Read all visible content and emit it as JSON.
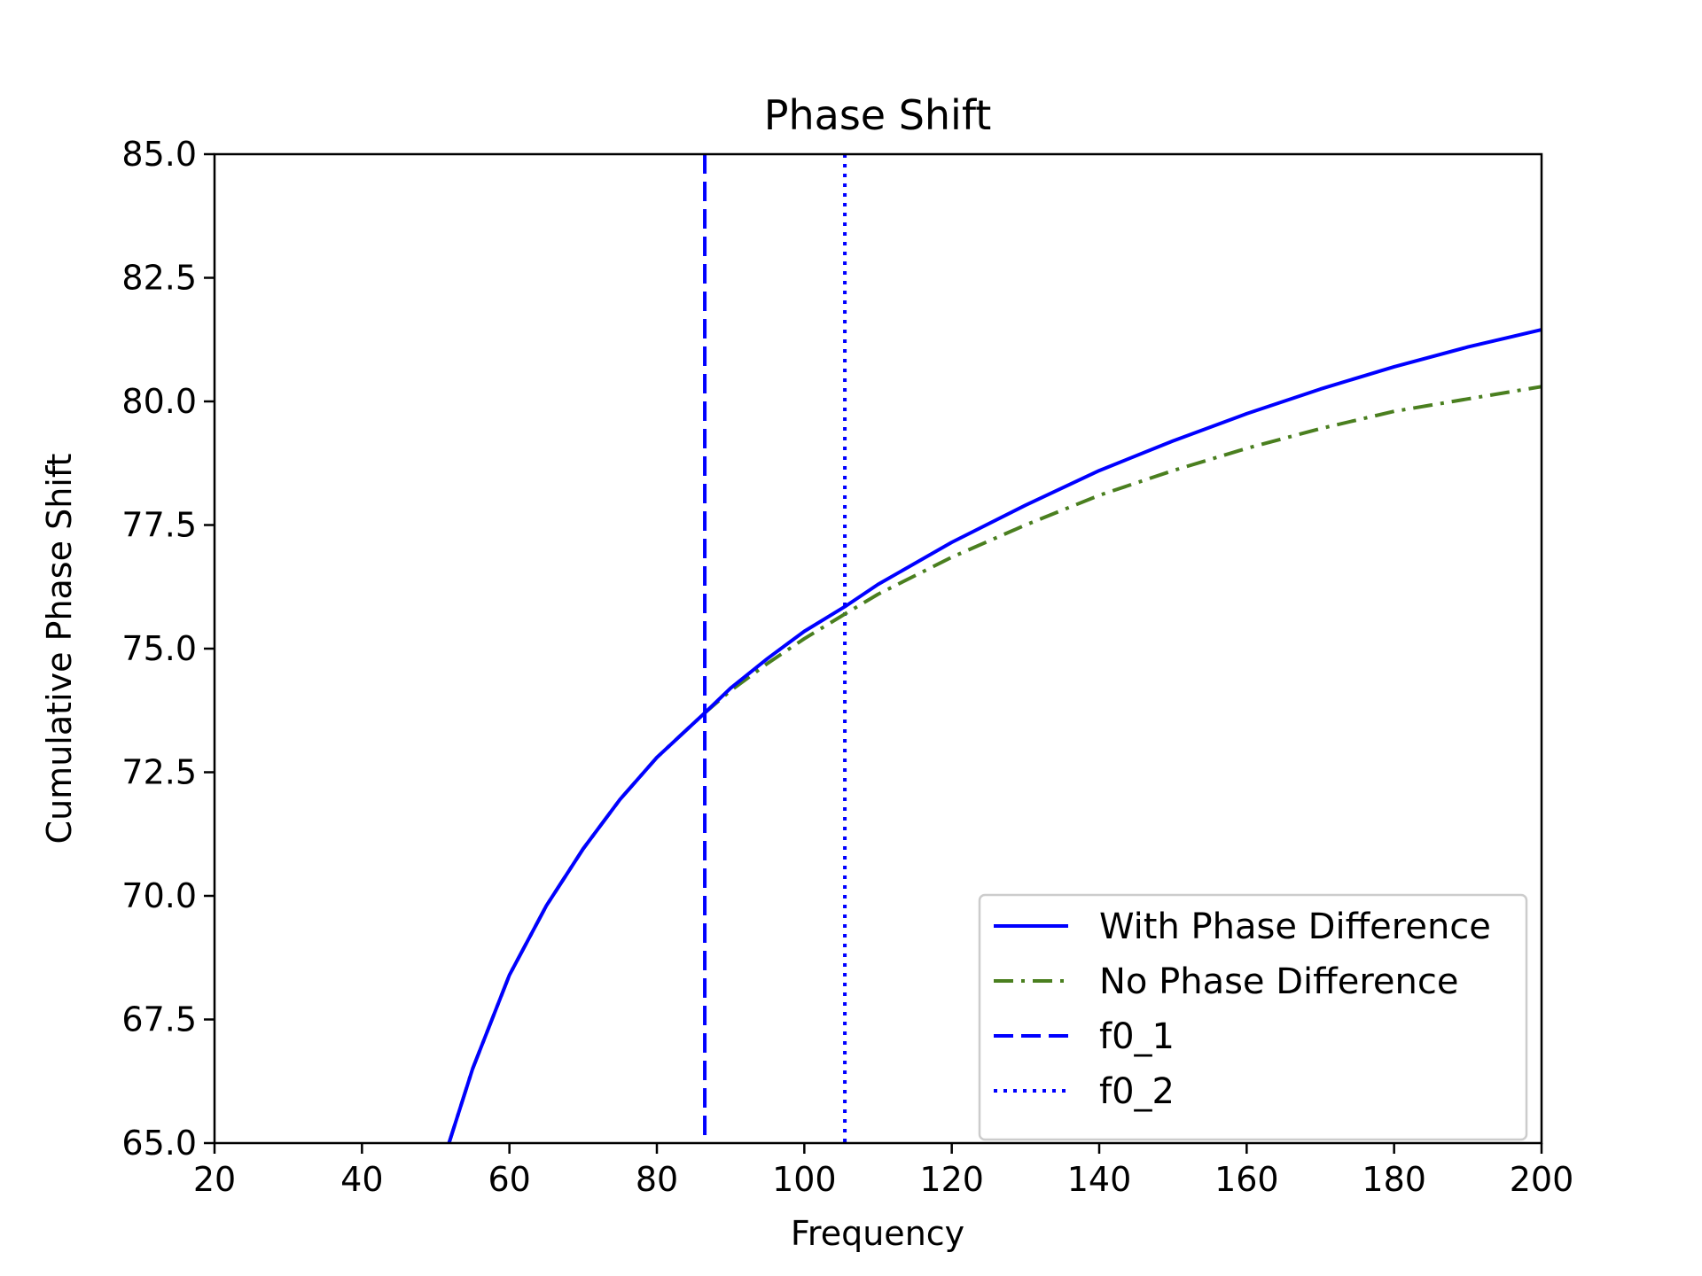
{
  "chart_data": {
    "type": "line",
    "title": "Phase Shift",
    "xlabel": "Frequency",
    "ylabel": "Cumulative Phase Shift",
    "xlim": [
      20,
      200
    ],
    "ylim": [
      65.0,
      85.0
    ],
    "x_ticks": [
      20,
      40,
      60,
      80,
      100,
      120,
      140,
      160,
      180,
      200
    ],
    "x_tick_labels": [
      "20",
      "40",
      "60",
      "80",
      "100",
      "120",
      "140",
      "160",
      "180",
      "200"
    ],
    "y_ticks": [
      65.0,
      67.5,
      70.0,
      72.5,
      75.0,
      77.5,
      80.0,
      82.5,
      85.0
    ],
    "y_tick_labels": [
      "65.0",
      "67.5",
      "70.0",
      "72.5",
      "75.0",
      "77.5",
      "80.0",
      "82.5",
      "85.0"
    ],
    "grid": false,
    "legend_position": "lower-right",
    "series": [
      {
        "name": "With Phase Difference",
        "color": "#0000ff",
        "style": "solid",
        "x": [
          51.8,
          55,
          60,
          65,
          70,
          75,
          80,
          86.5,
          90,
          95,
          100,
          105.5,
          110,
          120,
          130,
          140,
          150,
          160,
          170,
          180,
          190,
          200
        ],
        "y": [
          65.0,
          66.5,
          68.4,
          69.8,
          70.95,
          71.95,
          72.8,
          73.7,
          74.2,
          74.8,
          75.35,
          75.85,
          76.3,
          77.15,
          77.9,
          78.6,
          79.2,
          79.75,
          80.25,
          80.7,
          81.1,
          81.45
        ]
      },
      {
        "name": "No Phase Difference",
        "color": "#4a7f1f",
        "style": "dashdot",
        "x": [
          51.8,
          55,
          60,
          65,
          70,
          75,
          80,
          86.5,
          90,
          95,
          100,
          105.5,
          110,
          120,
          130,
          140,
          150,
          160,
          170,
          180,
          190,
          200
        ],
        "y": [
          65.0,
          66.5,
          68.4,
          69.8,
          70.95,
          71.95,
          72.8,
          73.7,
          74.15,
          74.7,
          75.2,
          75.7,
          76.1,
          76.85,
          77.5,
          78.1,
          78.6,
          79.05,
          79.45,
          79.8,
          80.05,
          80.3
        ]
      }
    ],
    "vlines": [
      {
        "name": "f0_1",
        "x": 86.5,
        "color": "#0000ff",
        "style": "dashed"
      },
      {
        "name": "f0_2",
        "x": 105.5,
        "color": "#0000ff",
        "style": "dotted"
      }
    ]
  }
}
